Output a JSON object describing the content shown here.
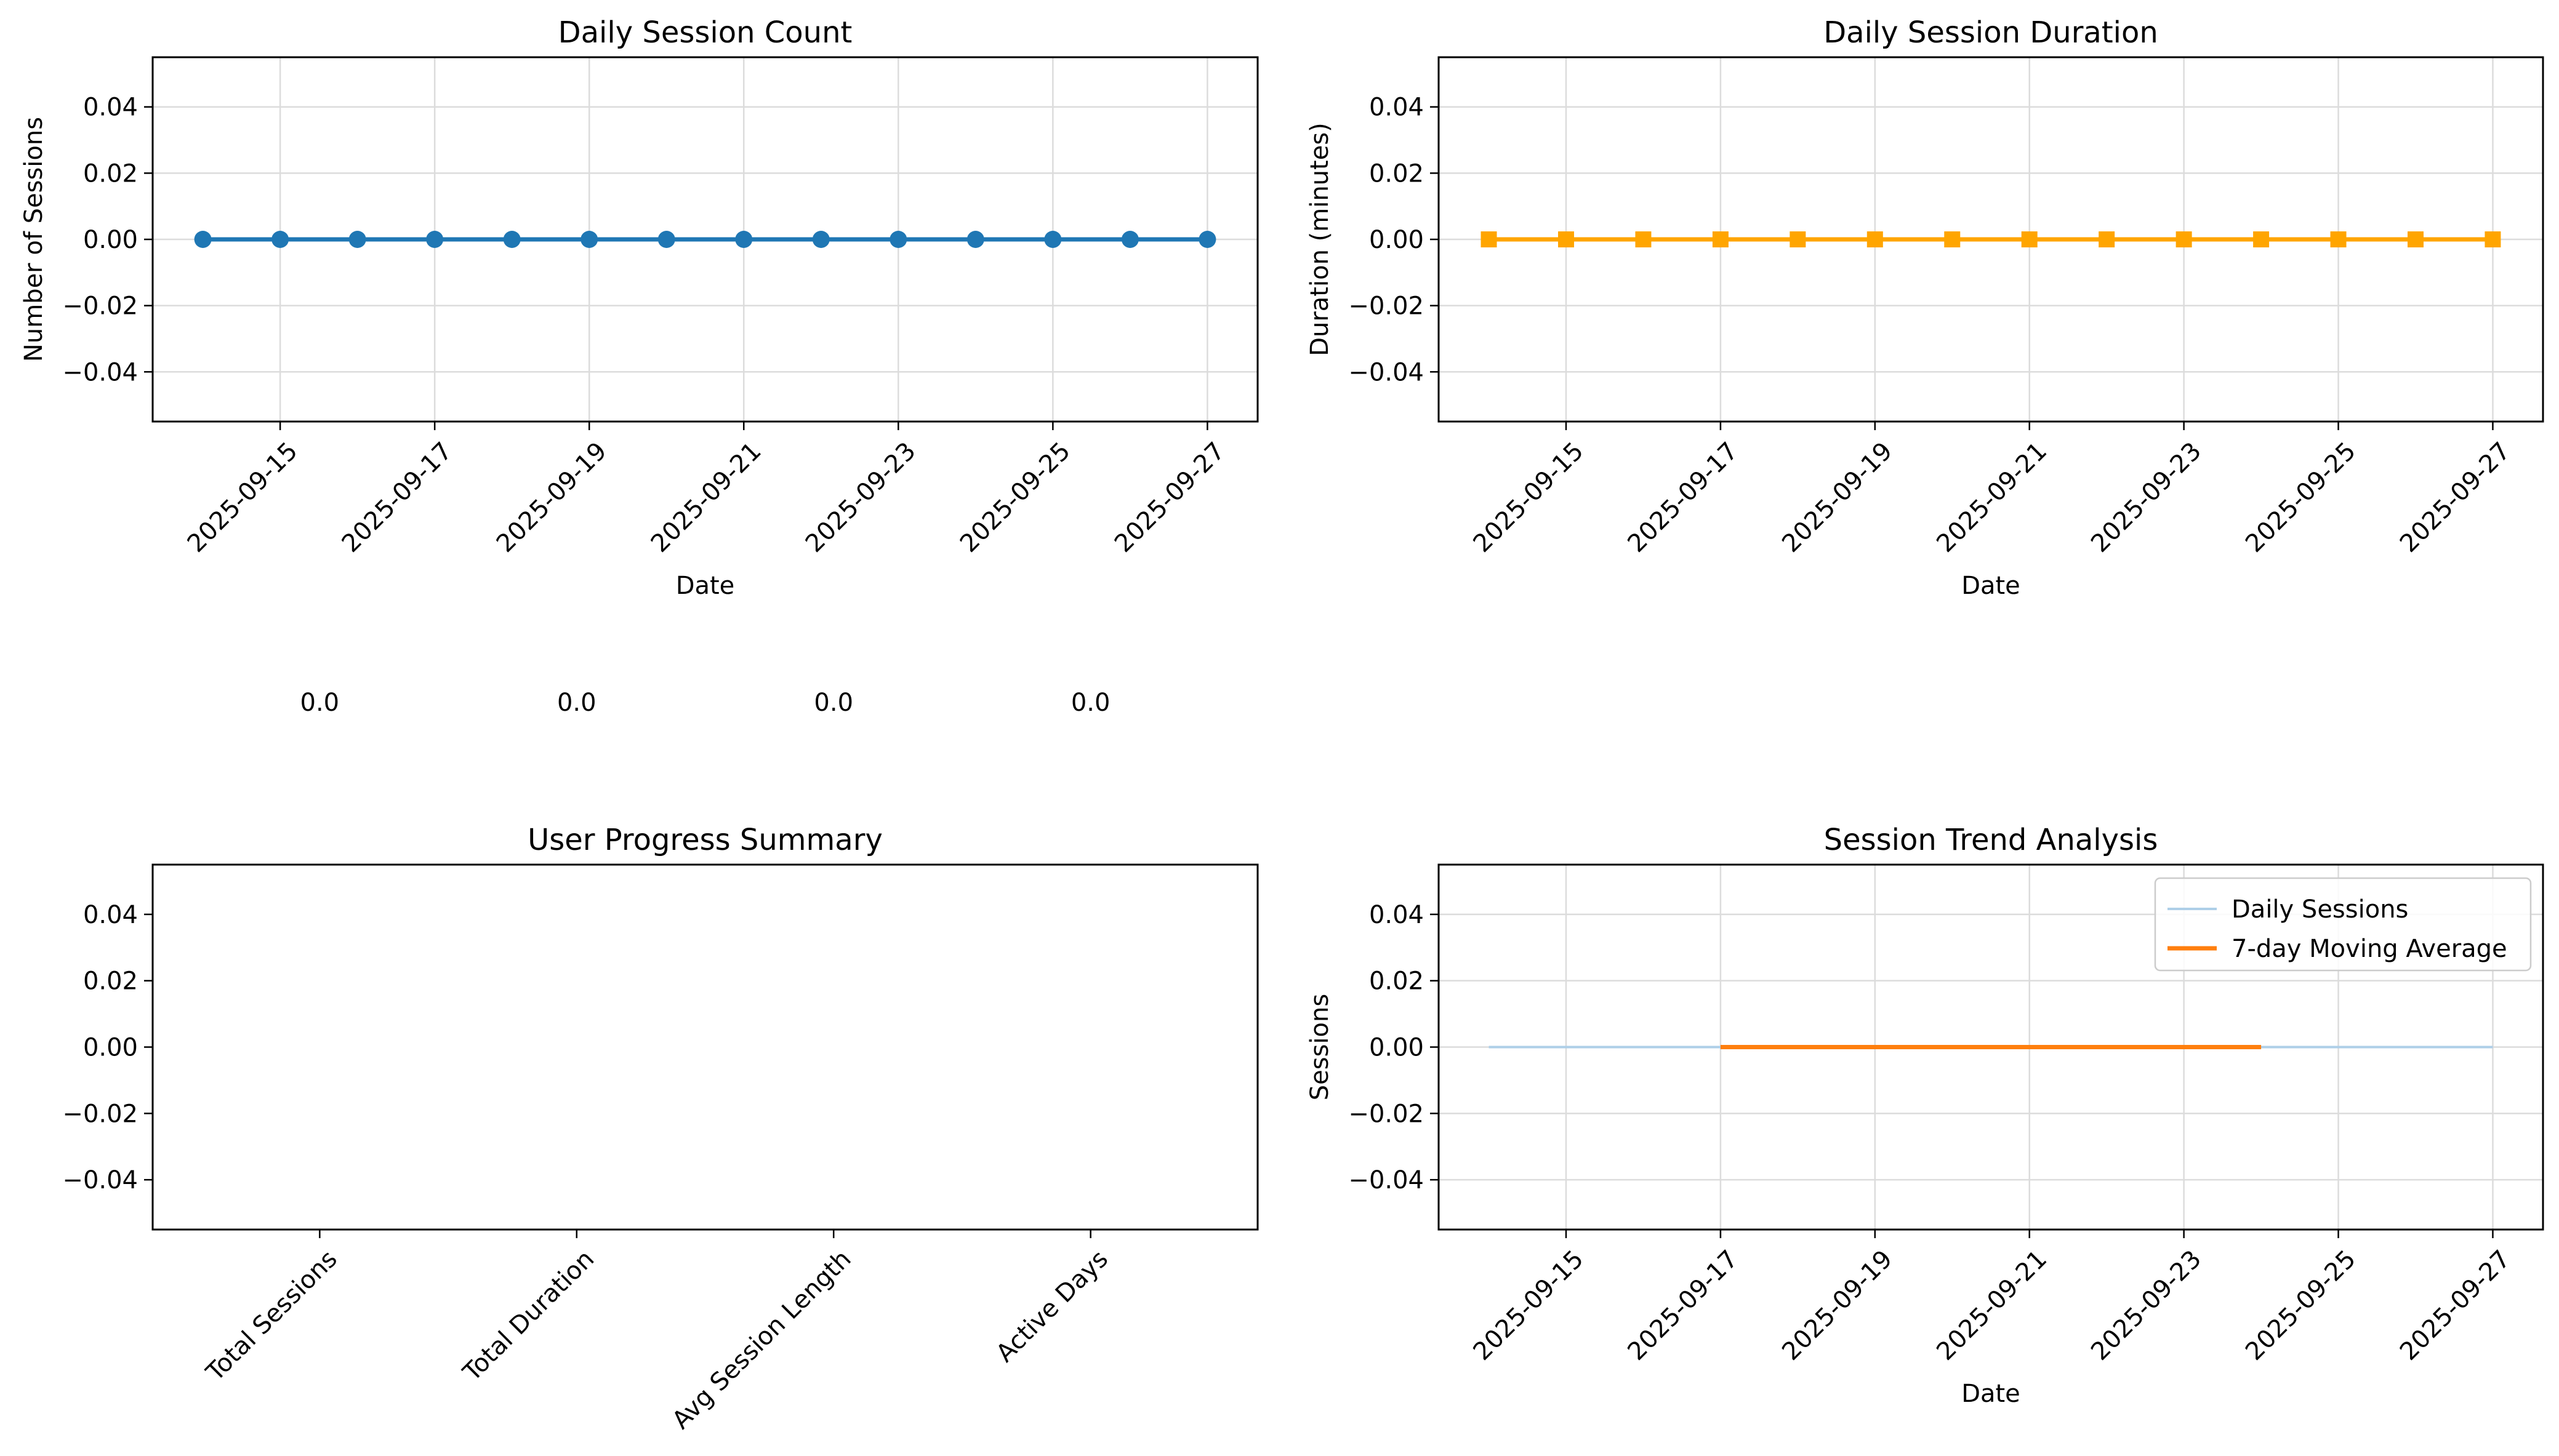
{
  "chart_data": [
    {
      "type": "line",
      "title": "Daily Session Count",
      "xlabel": "Date",
      "ylabel": "Number of Sessions",
      "x": [
        "2025-09-14",
        "2025-09-15",
        "2025-09-16",
        "2025-09-17",
        "2025-09-18",
        "2025-09-19",
        "2025-09-20",
        "2025-09-21",
        "2025-09-22",
        "2025-09-23",
        "2025-09-24",
        "2025-09-25",
        "2025-09-26",
        "2025-09-27"
      ],
      "x_ticks": [
        "2025-09-15",
        "2025-09-17",
        "2025-09-19",
        "2025-09-21",
        "2025-09-23",
        "2025-09-25",
        "2025-09-27"
      ],
      "y_ticks": [
        "0.04",
        "0.02",
        "0.00",
        "−0.02",
        "−0.04"
      ],
      "series": [
        {
          "values": [
            0,
            0,
            0,
            0,
            0,
            0,
            0,
            0,
            0,
            0,
            0,
            0,
            0,
            0
          ],
          "color": "#1f77b4",
          "marker": "circle"
        }
      ],
      "ylim": [
        -0.055,
        0.055
      ],
      "grid": true
    },
    {
      "type": "line",
      "title": "Daily Session Duration",
      "xlabel": "Date",
      "ylabel": "Duration (minutes)",
      "x": [
        "2025-09-14",
        "2025-09-15",
        "2025-09-16",
        "2025-09-17",
        "2025-09-18",
        "2025-09-19",
        "2025-09-20",
        "2025-09-21",
        "2025-09-22",
        "2025-09-23",
        "2025-09-24",
        "2025-09-25",
        "2025-09-26",
        "2025-09-27"
      ],
      "x_ticks": [
        "2025-09-15",
        "2025-09-17",
        "2025-09-19",
        "2025-09-21",
        "2025-09-23",
        "2025-09-25",
        "2025-09-27"
      ],
      "y_ticks": [
        "0.04",
        "0.02",
        "0.00",
        "−0.02",
        "−0.04"
      ],
      "series": [
        {
          "values": [
            0,
            0,
            0,
            0,
            0,
            0,
            0,
            0,
            0,
            0,
            0,
            0,
            0,
            0
          ],
          "color": "#ffa500",
          "marker": "square"
        }
      ],
      "ylim": [
        -0.055,
        0.055
      ],
      "grid": true
    },
    {
      "type": "bar",
      "title": "User Progress Summary",
      "categories": [
        "Total Sessions",
        "Total Duration",
        "Avg Session Length",
        "Active Days"
      ],
      "values": [
        0.0,
        0.0,
        0.0,
        0.0
      ],
      "value_labels": [
        "0.0",
        "0.0",
        "0.0",
        "0.0"
      ],
      "y_ticks": [
        "0.04",
        "0.02",
        "0.00",
        "−0.02",
        "−0.04"
      ],
      "ylim": [
        -0.055,
        0.055
      ],
      "grid": false
    },
    {
      "type": "line",
      "title": "Session Trend Analysis",
      "xlabel": "Date",
      "ylabel": "Sessions",
      "x": [
        "2025-09-14",
        "2025-09-15",
        "2025-09-16",
        "2025-09-17",
        "2025-09-18",
        "2025-09-19",
        "2025-09-20",
        "2025-09-21",
        "2025-09-22",
        "2025-09-23",
        "2025-09-24",
        "2025-09-25",
        "2025-09-26",
        "2025-09-27"
      ],
      "x_ticks": [
        "2025-09-15",
        "2025-09-17",
        "2025-09-19",
        "2025-09-21",
        "2025-09-23",
        "2025-09-25",
        "2025-09-27"
      ],
      "y_ticks": [
        "0.04",
        "0.02",
        "0.00",
        "−0.02",
        "−0.04"
      ],
      "series": [
        {
          "name": "Daily Sessions",
          "x": [
            "2025-09-14",
            "2025-09-15",
            "2025-09-16",
            "2025-09-17",
            "2025-09-18",
            "2025-09-19",
            "2025-09-20",
            "2025-09-21",
            "2025-09-22",
            "2025-09-23",
            "2025-09-24",
            "2025-09-25",
            "2025-09-26",
            "2025-09-27"
          ],
          "values": [
            0,
            0,
            0,
            0,
            0,
            0,
            0,
            0,
            0,
            0,
            0,
            0,
            0,
            0
          ],
          "color": "#aecfe8"
        },
        {
          "name": "7-day Moving Average",
          "x": [
            "2025-09-17",
            "2025-09-18",
            "2025-09-19",
            "2025-09-20",
            "2025-09-21",
            "2025-09-22",
            "2025-09-23",
            "2025-09-24"
          ],
          "values": [
            0,
            0,
            0,
            0,
            0,
            0,
            0,
            0
          ],
          "color": "#ff7f0e"
        }
      ],
      "ylim": [
        -0.055,
        0.055
      ],
      "legend": "top-right",
      "grid": true
    }
  ]
}
